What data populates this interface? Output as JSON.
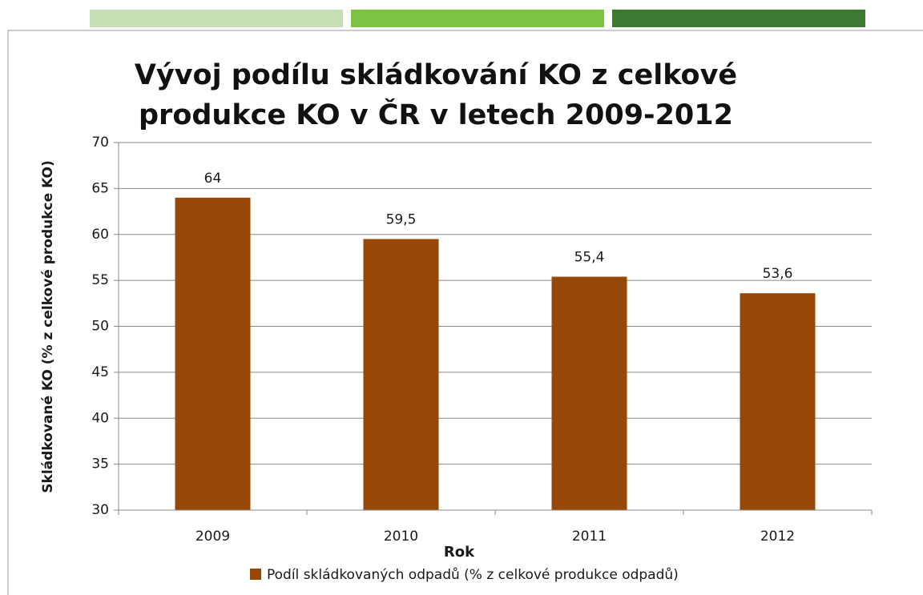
{
  "chart_data": {
    "type": "bar",
    "title": [
      "Vývoj podílu skládkování KO z celkové",
      "produkce   KO v ČR v letech 2009-2012"
    ],
    "categories": [
      "2009",
      "2010",
      "2011",
      "2012"
    ],
    "series": [
      {
        "name": "Podíl skládkovaných odpadů (% z celkové produkce odpadů)",
        "color": "#974706",
        "values": [
          64,
          59.5,
          55.4,
          53.6
        ],
        "value_labels": [
          "64",
          "59,5",
          "55,4",
          "53,6"
        ]
      }
    ],
    "x_label": "Rok",
    "y_label": "Skládkované KO (% z celkové produkce  KO)",
    "ylim": [
      30,
      70
    ],
    "yticks": [
      30,
      35,
      40,
      45,
      50,
      55,
      60,
      65,
      70
    ],
    "grid": true,
    "legend": "bottom"
  }
}
